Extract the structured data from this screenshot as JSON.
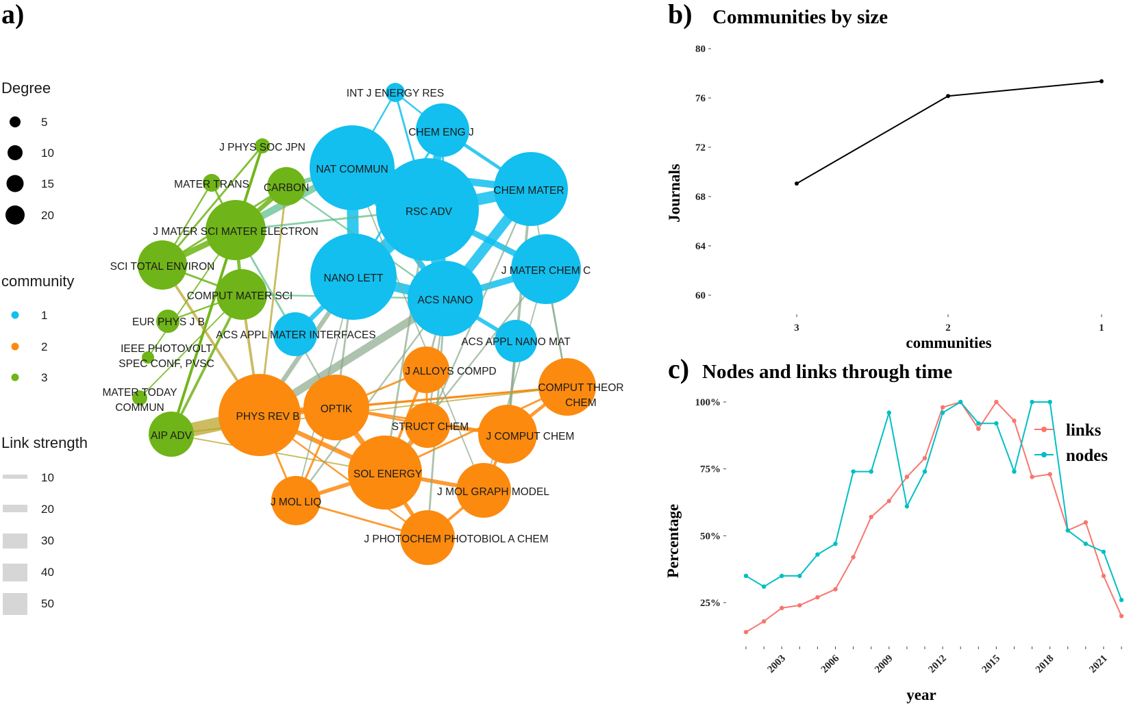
{
  "panel_a": {
    "letter": "a)",
    "colors": {
      "1": "#12bfee",
      "2": "#fb8a0f",
      "3": "#6fb418"
    },
    "legend_degree": {
      "title": "Degree",
      "values": [
        "5",
        "10",
        "15",
        "20"
      ]
    },
    "legend_community": {
      "title": "community",
      "values": [
        "1",
        "2",
        "3"
      ]
    },
    "legend_link": {
      "title": "Link strength",
      "values": [
        "10",
        "20",
        "30",
        "40",
        "50"
      ]
    },
    "nodes": [
      {
        "id": "INT J ENERGY RES",
        "community": 1,
        "degree": 4
      },
      {
        "id": "CHEM ENG J",
        "community": 1,
        "degree": 9
      },
      {
        "id": "NAT COMMUN",
        "community": 1,
        "degree": 19
      },
      {
        "id": "RSC ADV",
        "community": 1,
        "degree": 22
      },
      {
        "id": "CHEM MATER",
        "community": 1,
        "degree": 17
      },
      {
        "id": "J MATER CHEM C",
        "community": 1,
        "degree": 11
      },
      {
        "id": "NANO LETT",
        "community": 1,
        "degree": 19
      },
      {
        "id": "ACS NANO",
        "community": 1,
        "degree": 16
      },
      {
        "id": "ACS APPL MATER INTERFACES",
        "community": 1,
        "degree": 6
      },
      {
        "id": "ACS APPL NANO MAT",
        "community": 1,
        "degree": 6
      },
      {
        "id": "J PHYS SOC JPN",
        "community": 3,
        "degree": 3
      },
      {
        "id": "MATER TRANS",
        "community": 3,
        "degree": 3
      },
      {
        "id": "CARBON",
        "community": 3,
        "degree": 6
      },
      {
        "id": "J MATER SCI MATER ELECTRON",
        "community": 3,
        "degree": 11
      },
      {
        "id": "SCI TOTAL ENVIRON",
        "community": 3,
        "degree": 8
      },
      {
        "id": "COMPUT MATER SCI",
        "community": 3,
        "degree": 8
      },
      {
        "id": "EUR PHYS J B",
        "community": 3,
        "degree": 3
      },
      {
        "id": "IEEE PHOTOVOLT SPEC CONF, PVSC",
        "community": 3,
        "degree": 3
      },
      {
        "id": "MATER TODAY COMMUN",
        "community": 3,
        "degree": 3
      },
      {
        "id": "AIP ADV",
        "community": 3,
        "degree": 7
      },
      {
        "id": "PHYS REV B",
        "community": 2,
        "degree": 17
      },
      {
        "id": "OPTIK",
        "community": 2,
        "degree": 11
      },
      {
        "id": "J ALLOYS COMPD",
        "community": 2,
        "degree": 6
      },
      {
        "id": "STRUCT CHEM",
        "community": 2,
        "degree": 7
      },
      {
        "id": "COMPUT THEOR CHEM",
        "community": 2,
        "degree": 9
      },
      {
        "id": "J COMPUT CHEM",
        "community": 2,
        "degree": 9
      },
      {
        "id": "SOL ENERGY",
        "community": 2,
        "degree": 13
      },
      {
        "id": "J MOL LIQ",
        "community": 2,
        "degree": 7
      },
      {
        "id": "J MOL GRAPH MODEL",
        "community": 2,
        "degree": 8
      },
      {
        "id": "J PHOTOCHEM PHOTOBIOL A CHEM",
        "community": 2,
        "degree": 8
      }
    ],
    "edges": [
      [
        "NAT COMMUN",
        "RSC ADV",
        50
      ],
      [
        "RSC ADV",
        "NANO LETT",
        45
      ],
      [
        "RSC ADV",
        "ACS NANO",
        40
      ],
      [
        "NAT COMMUN",
        "NANO LETT",
        35
      ],
      [
        "RSC ADV",
        "CHEM MATER",
        35
      ],
      [
        "CHEM MATER",
        "ACS NANO",
        30
      ],
      [
        "NANO LETT",
        "ACS NANO",
        30
      ],
      [
        "RSC ADV",
        "CHEM ENG J",
        25
      ],
      [
        "NAT COMMUN",
        "CHEM MATER",
        22
      ],
      [
        "J MATER CHEM C",
        "ACS NANO",
        20
      ],
      [
        "RSC ADV",
        "J MATER CHEM C",
        18
      ],
      [
        "NAT COMMUN",
        "ACS NANO",
        18
      ],
      [
        "NANO LETT",
        "ACS APPL MATER INTERFACES",
        15
      ],
      [
        "ACS NANO",
        "ACS APPL NANO MAT",
        12
      ],
      [
        "CHEM ENG J",
        "CHEM MATER",
        10
      ],
      [
        "INT J ENERGY RES",
        "RSC ADV",
        6
      ],
      [
        "INT J ENERGY RES",
        "NAT COMMUN",
        5
      ],
      [
        "INT J ENERGY RES",
        "CHEM ENG J",
        5
      ],
      [
        "NAT COMMUN",
        "J MATER SCI MATER ELECTRON",
        22
      ],
      [
        "CARBON",
        "NAT COMMUN",
        14
      ],
      [
        "AIP ADV",
        "PHYS REV B",
        42
      ],
      [
        "PHYS REV B",
        "ACS NANO",
        24
      ],
      [
        "PHYS REV B",
        "NANO LETT",
        14
      ],
      [
        "PHYS REV B",
        "OPTIK",
        20
      ],
      [
        "PHYS REV B",
        "SOL ENERGY",
        14
      ],
      [
        "OPTIK",
        "SOL ENERGY",
        16
      ],
      [
        "SOL ENERGY",
        "J MOL LIQ",
        12
      ],
      [
        "SOL ENERGY",
        "J MOL GRAPH MODEL",
        12
      ],
      [
        "SOL ENERGY",
        "J PHOTOCHEM PHOTOBIOL A CHEM",
        12
      ],
      [
        "SOL ENERGY",
        "STRUCT CHEM",
        10
      ],
      [
        "J COMPUT CHEM",
        "COMPUT THEOR CHEM",
        10
      ],
      [
        "STRUCT CHEM",
        "J COMPUT CHEM",
        8
      ],
      [
        "OPTIK",
        "COMPUT THEOR CHEM",
        6
      ],
      [
        "PHYS REV B",
        "COMPUT THEOR CHEM",
        6
      ],
      [
        "J MOL GRAPH MODEL",
        "J COMPUT CHEM",
        8
      ],
      [
        "J PHOTOCHEM PHOTOBIOL A CHEM",
        "J MOL GRAPH MODEL",
        8
      ],
      [
        "J ALLOYS COMPD",
        "SOL ENERGY",
        8
      ],
      [
        "J ALLOYS COMPD",
        "OPTIK",
        6
      ],
      [
        "J ALLOYS COMPD",
        "STRUCT CHEM",
        6
      ],
      [
        "J MOL LIQ",
        "OPTIK",
        6
      ],
      [
        "J MOL LIQ",
        "J PHOTOCHEM PHOTOBIOL A CHEM",
        6
      ],
      [
        "PHYS REV B",
        "J MOL LIQ",
        6
      ],
      [
        "OPTIK",
        "J COMPUT CHEM",
        6
      ],
      [
        "PHYS REV B",
        "J PHOTOCHEM PHOTOBIOL A CHEM",
        5
      ],
      [
        "COMPUT THEOR CHEM",
        "SOL ENERGY",
        6
      ],
      [
        "OPTIK",
        "STRUCT CHEM",
        6
      ],
      [
        "J MATER SCI MATER ELECTRON",
        "SCI TOTAL ENVIRON",
        18
      ],
      [
        "J MATER SCI MATER ELECTRON",
        "CARBON",
        14
      ],
      [
        "J MATER SCI MATER ELECTRON",
        "J PHYS SOC JPN",
        8
      ],
      [
        "J MATER SCI MATER ELECTRON",
        "MATER TRANS",
        6
      ],
      [
        "J MATER SCI MATER ELECTRON",
        "COMPUT MATER SCI",
        10
      ],
      [
        "COMPUT MATER SCI",
        "SCI TOTAL ENVIRON",
        6
      ],
      [
        "J PHYS SOC JPN",
        "SCI TOTAL ENVIRON",
        6
      ],
      [
        "J PHYS SOC JPN",
        "AIP ADV",
        8
      ],
      [
        "MATER TRANS",
        "SCI TOTAL ENVIRON",
        5
      ],
      [
        "CARBON",
        "SCI TOTAL ENVIRON",
        6
      ],
      [
        "EUR PHYS J B",
        "COMPUT MATER SCI",
        5
      ],
      [
        "AIP ADV",
        "COMPUT MATER SCI",
        8
      ],
      [
        "AIP ADV",
        "J MATER SCI MATER ELECTRON",
        8
      ],
      [
        "MATER TODAY COMMUN",
        "COMPUT MATER SCI",
        4
      ],
      [
        "IEEE PHOTOVOLT SPEC CONF, PVSC",
        "J MATER SCI MATER ELECTRON",
        4
      ],
      [
        "CARBON",
        "PHYS REV B",
        6
      ],
      [
        "J MATER SCI MATER ELECTRON",
        "ACS APPL MATER INTERFACES",
        6
      ],
      [
        "COMPUT MATER SCI",
        "PHYS REV B",
        8
      ],
      [
        "SCI TOTAL ENVIRON",
        "PHYS REV B",
        8
      ],
      [
        "COMPUT MATER SCI",
        "ACS NANO",
        5
      ],
      [
        "NANO LETT",
        "OPTIK",
        6
      ],
      [
        "ACS NANO",
        "J ALLOYS COMPD",
        6
      ],
      [
        "ACS NANO",
        "STRUCT CHEM",
        5
      ],
      [
        "CHEM MATER",
        "J COMPUT CHEM",
        8
      ],
      [
        "J MATER CHEM C",
        "COMPUT THEOR CHEM",
        6
      ],
      [
        "ACS APPL NANO MAT",
        "J COMPUT CHEM",
        6
      ],
      [
        "ACS NANO",
        "J PHOTOCHEM PHOTOBIOL A CHEM",
        6
      ],
      [
        "J MATER CHEM C",
        "SOL ENERGY",
        5
      ],
      [
        "RSC ADV",
        "SOL ENERGY",
        6
      ],
      [
        "NAT COMMUN",
        "J MOL GRAPH MODEL",
        4
      ],
      [
        "CHEM MATER",
        "COMPUT THEOR CHEM",
        4
      ],
      [
        "ACS APPL MATER INTERFACES",
        "OPTIK",
        5
      ],
      [
        "CARBON",
        "ACS NANO",
        5
      ],
      [
        "J MATER SCI MATER ELECTRON",
        "RSC ADV",
        6
      ],
      [
        "ACS NANO",
        "J MOL LIQ",
        5
      ],
      [
        "CHEM MATER",
        "STRUCT CHEM",
        5
      ],
      [
        "CHEM ENG J",
        "ACS NANO",
        6
      ],
      [
        "CHEM ENG J",
        "NANO LETT",
        6
      ],
      [
        "J MATER CHEM C",
        "J MOL GRAPH MODEL",
        4
      ],
      [
        "NANO LETT",
        "J MOL LIQ",
        4
      ],
      [
        "AIP ADV",
        "SOL ENERGY",
        4
      ],
      [
        "AIP ADV",
        "COMPUT THEOR CHEM",
        4
      ]
    ]
  },
  "chart_data": [
    {
      "panel": "b)",
      "type": "line",
      "title": "Communities by size",
      "xlabel": "communities",
      "ylabel": "Journals",
      "categories": [
        "3",
        "2",
        "1"
      ],
      "values": [
        69,
        76.1,
        77.3
      ],
      "ylim": [
        59,
        80
      ],
      "yticks": [
        "60",
        "64",
        "68",
        "72",
        "76",
        "80"
      ],
      "color": "#000000",
      "grid": false
    },
    {
      "panel": "c)",
      "type": "line",
      "title": "Nodes and links through time",
      "xlabel": "year",
      "ylabel": "Percentage",
      "x": [
        2001,
        2002,
        2003,
        2004,
        2005,
        2006,
        2007,
        2008,
        2009,
        2010,
        2011,
        2012,
        2013,
        2014,
        2015,
        2016,
        2017,
        2018,
        2019,
        2020,
        2021,
        2022
      ],
      "xtick_labels": [
        "2003",
        "2006",
        "2009",
        "2012",
        "2015",
        "2018",
        "2021"
      ],
      "yticks": [
        "25%",
        "50%",
        "75%",
        "100%"
      ],
      "ylim": [
        0.12,
        1.02
      ],
      "legend": "right",
      "grid": false,
      "series": [
        {
          "name": "links",
          "color": "#f8766d",
          "values": [
            0.14,
            0.18,
            0.23,
            0.24,
            0.27,
            0.3,
            0.42,
            0.57,
            0.63,
            0.72,
            0.79,
            0.98,
            1.0,
            0.9,
            1.0,
            0.93,
            0.72,
            0.73,
            0.52,
            0.55,
            0.35,
            0.2
          ]
        },
        {
          "name": "nodes",
          "color": "#00bfc4",
          "values": [
            0.35,
            0.31,
            0.35,
            0.35,
            0.43,
            0.47,
            0.74,
            0.74,
            0.96,
            0.61,
            0.74,
            0.96,
            1.0,
            0.92,
            0.92,
            0.74,
            1.0,
            1.0,
            0.52,
            0.47,
            0.44,
            0.26
          ]
        }
      ]
    }
  ]
}
